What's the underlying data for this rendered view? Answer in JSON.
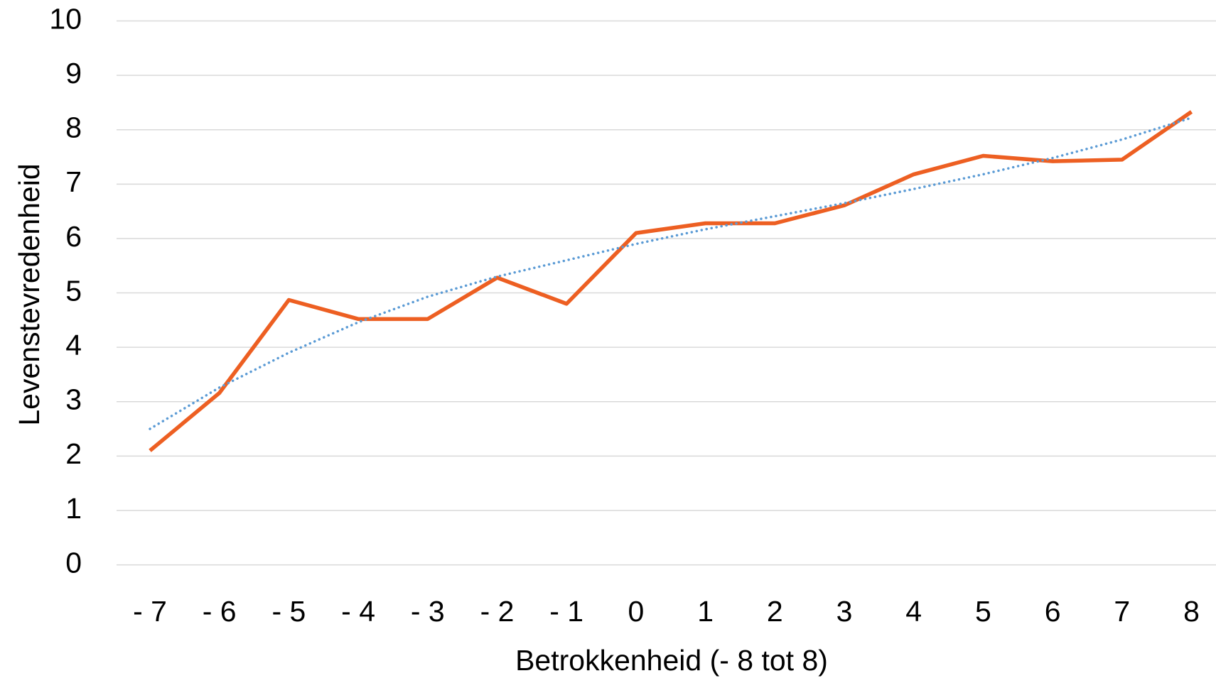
{
  "chart_data": {
    "type": "line",
    "x_label": "Betrokkenheid (- 8 tot 8)",
    "y_label": "Levenstevredenheid",
    "categories": [
      "- 7",
      "- 6",
      "- 5",
      "- 4",
      "- 3",
      "- 2",
      "- 1",
      "0",
      "1",
      "2",
      "3",
      "4",
      "5",
      "6",
      "7",
      "8"
    ],
    "series": [
      {
        "color": "#ed5f22",
        "style": "solid",
        "values": [
          2.1,
          3.16,
          4.87,
          4.52,
          4.52,
          5.28,
          4.8,
          6.1,
          6.28,
          6.28,
          6.61,
          7.18,
          7.52,
          7.42,
          7.45,
          8.33
        ]
      },
      {
        "color": "#5b9bd5",
        "style": "dotted",
        "values": [
          2.5,
          3.26,
          3.9,
          4.46,
          4.93,
          5.3,
          5.6,
          5.9,
          6.17,
          6.41,
          6.65,
          6.91,
          7.18,
          7.48,
          7.82,
          8.22
        ]
      }
    ],
    "ylim": [
      0,
      10
    ],
    "yticks": [
      0,
      1,
      2,
      3,
      4,
      5,
      6,
      7,
      8,
      9,
      10
    ],
    "grid": true
  }
}
